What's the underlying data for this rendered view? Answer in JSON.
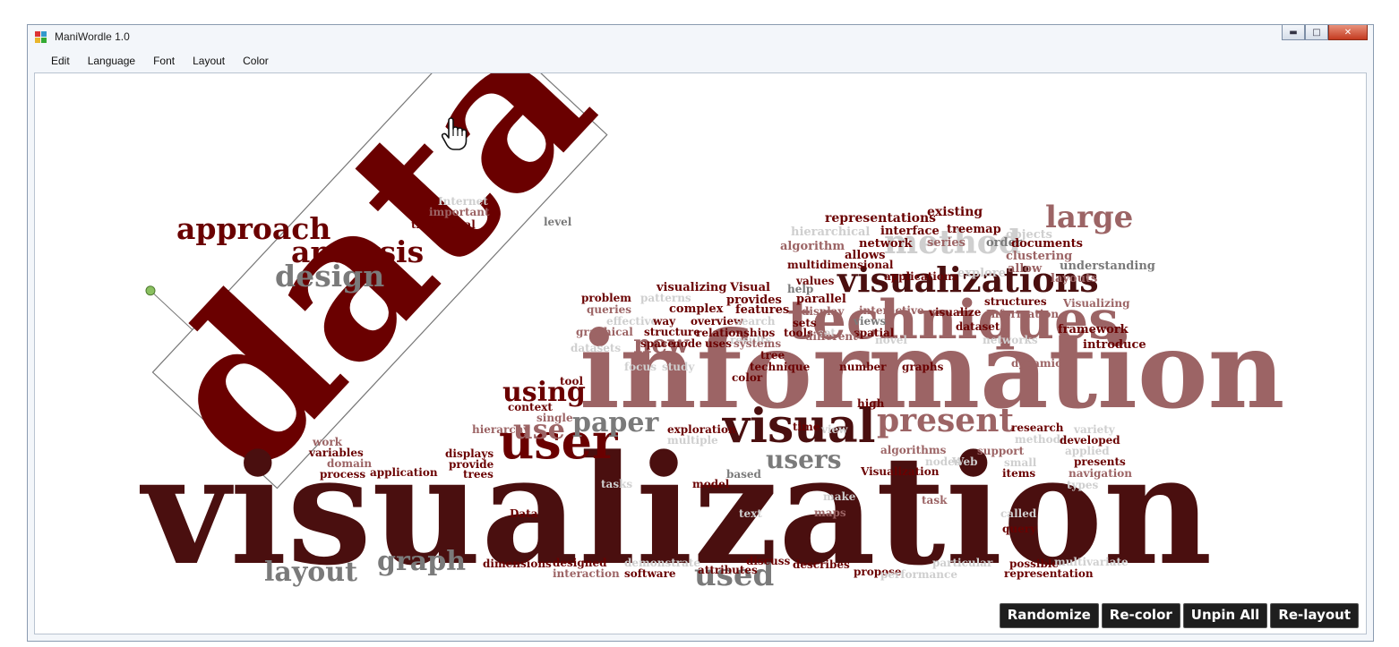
{
  "window": {
    "title": "ManiWordle 1.0"
  },
  "menu": [
    "Edit",
    "Language",
    "Font",
    "Layout",
    "Color"
  ],
  "buttons": {
    "randomize": "Randomize",
    "recolor": "Re-color",
    "unpin_all": "Unpin All",
    "relayout": "Re-layout"
  },
  "colors": {
    "dark": "#4a0f0f",
    "maroon": "#6a0000",
    "rose": "#9c6465",
    "gray": "#7a7a7a",
    "light": "#cfcfcf"
  },
  "cloud": {
    "pinned_word": "data",
    "words": [
      {
        "text": "visualization",
        "c": "dark"
      },
      {
        "text": "information",
        "c": "rose"
      },
      {
        "text": "techniques",
        "c": "rose"
      },
      {
        "text": "visual",
        "c": "dark"
      },
      {
        "text": "user",
        "c": "maroon"
      },
      {
        "text": "paper",
        "c": "gray"
      },
      {
        "text": "present",
        "c": "rose"
      },
      {
        "text": "large",
        "c": "rose"
      },
      {
        "text": "method",
        "c": "light"
      },
      {
        "text": "visualizations",
        "c": "dark"
      },
      {
        "text": "approach",
        "c": "maroon"
      },
      {
        "text": "analysis",
        "c": "maroon"
      },
      {
        "text": "design",
        "c": "gray"
      },
      {
        "text": "layout",
        "c": "gray"
      },
      {
        "text": "graph",
        "c": "gray"
      },
      {
        "text": "used",
        "c": "gray"
      },
      {
        "text": "users",
        "c": "gray"
      },
      {
        "text": "using",
        "c": "maroon"
      },
      {
        "text": "use",
        "c": "rose"
      },
      {
        "text": "new",
        "c": "rose"
      },
      {
        "text": "representations",
        "c": "maroon"
      },
      {
        "text": "existing",
        "c": "maroon"
      },
      {
        "text": "interface",
        "c": "maroon"
      },
      {
        "text": "treemap",
        "c": "maroon"
      },
      {
        "text": "hierarchical",
        "c": "light"
      },
      {
        "text": "objects",
        "c": "light"
      },
      {
        "text": "algorithm",
        "c": "rose"
      },
      {
        "text": "network",
        "c": "maroon"
      },
      {
        "text": "series",
        "c": "rose"
      },
      {
        "text": "order",
        "c": "gray"
      },
      {
        "text": "documents",
        "c": "maroon"
      },
      {
        "text": "allows",
        "c": "maroon"
      },
      {
        "text": "clustering",
        "c": "rose"
      },
      {
        "text": "multidimensional",
        "c": "maroon"
      },
      {
        "text": "allow",
        "c": "rose"
      },
      {
        "text": "understanding",
        "c": "gray"
      },
      {
        "text": "applications",
        "c": "maroon"
      },
      {
        "text": "explore",
        "c": "light"
      },
      {
        "text": "layouts",
        "c": "rose"
      },
      {
        "text": "values",
        "c": "maroon"
      },
      {
        "text": "help",
        "c": "gray"
      },
      {
        "text": "visualizing",
        "c": "maroon"
      },
      {
        "text": "Visual",
        "c": "maroon"
      },
      {
        "text": "parallel",
        "c": "maroon"
      },
      {
        "text": "structures",
        "c": "maroon"
      },
      {
        "text": "Visualizing",
        "c": "rose"
      },
      {
        "text": "problem",
        "c": "maroon"
      },
      {
        "text": "patterns",
        "c": "light"
      },
      {
        "text": "provides",
        "c": "maroon"
      },
      {
        "text": "display",
        "c": "rose"
      },
      {
        "text": "queries",
        "c": "rose"
      },
      {
        "text": "complex",
        "c": "maroon"
      },
      {
        "text": "features",
        "c": "maroon"
      },
      {
        "text": "interactive",
        "c": "rose"
      },
      {
        "text": "visualize",
        "c": "maroon"
      },
      {
        "text": "Information",
        "c": "rose"
      },
      {
        "text": "overview",
        "c": "maroon"
      },
      {
        "text": "sets",
        "c": "maroon"
      },
      {
        "text": "views",
        "c": "gray"
      },
      {
        "text": "effective",
        "c": "light"
      },
      {
        "text": "way",
        "c": "maroon"
      },
      {
        "text": "search",
        "c": "light"
      },
      {
        "text": "tools",
        "c": "maroon"
      },
      {
        "text": "set",
        "c": "light"
      },
      {
        "text": "spatial",
        "c": "maroon"
      },
      {
        "text": "dataset",
        "c": "maroon"
      },
      {
        "text": "relationships",
        "c": "maroon"
      },
      {
        "text": "different",
        "c": "rose"
      },
      {
        "text": "novel",
        "c": "light"
      },
      {
        "text": "networks",
        "c": "light"
      },
      {
        "text": "framework",
        "c": "maroon"
      },
      {
        "text": "graphical",
        "c": "rose"
      },
      {
        "text": "structure",
        "c": "maroon"
      },
      {
        "text": "results",
        "c": "light"
      },
      {
        "text": "space",
        "c": "maroon"
      },
      {
        "text": "node",
        "c": "maroon"
      },
      {
        "text": "uses",
        "c": "maroon"
      },
      {
        "text": "systems",
        "c": "rose"
      },
      {
        "text": "introduce",
        "c": "maroon"
      },
      {
        "text": "datasets",
        "c": "light"
      },
      {
        "text": "tree",
        "c": "maroon"
      },
      {
        "text": "technique",
        "c": "maroon"
      },
      {
        "text": "number",
        "c": "maroon"
      },
      {
        "text": "graphs",
        "c": "maroon"
      },
      {
        "text": "dynamic",
        "c": "rose"
      },
      {
        "text": "focus",
        "c": "light"
      },
      {
        "text": "study",
        "c": "light"
      },
      {
        "text": "color",
        "c": "maroon"
      },
      {
        "text": "tool",
        "c": "maroon"
      },
      {
        "text": "context",
        "c": "maroon"
      },
      {
        "text": "high",
        "c": "maroon"
      },
      {
        "text": "single",
        "c": "rose"
      },
      {
        "text": "hierarchy",
        "c": "rose"
      },
      {
        "text": "exploration",
        "c": "maroon"
      },
      {
        "text": "time",
        "c": "maroon"
      },
      {
        "text": "view",
        "c": "light"
      },
      {
        "text": "research",
        "c": "maroon"
      },
      {
        "text": "variety",
        "c": "light"
      },
      {
        "text": "multiple",
        "c": "light"
      },
      {
        "text": "methods",
        "c": "light"
      },
      {
        "text": "developed",
        "c": "maroon"
      },
      {
        "text": "algorithms",
        "c": "rose"
      },
      {
        "text": "support",
        "c": "rose"
      },
      {
        "text": "applied",
        "c": "light"
      },
      {
        "text": "work",
        "c": "rose"
      },
      {
        "text": "variables",
        "c": "maroon"
      },
      {
        "text": "domain",
        "c": "rose"
      },
      {
        "text": "process",
        "c": "maroon"
      },
      {
        "text": "application",
        "c": "maroon"
      },
      {
        "text": "displays",
        "c": "maroon"
      },
      {
        "text": "provide",
        "c": "maroon"
      },
      {
        "text": "trees",
        "c": "maroon"
      },
      {
        "text": "nodes",
        "c": "light"
      },
      {
        "text": "Web",
        "c": "light"
      },
      {
        "text": "small",
        "c": "light"
      },
      {
        "text": "presents",
        "c": "maroon"
      },
      {
        "text": "Visualization",
        "c": "maroon"
      },
      {
        "text": "based",
        "c": "gray"
      },
      {
        "text": "items",
        "c": "maroon"
      },
      {
        "text": "navigation",
        "c": "rose"
      },
      {
        "text": "tasks",
        "c": "light"
      },
      {
        "text": "model",
        "c": "maroon"
      },
      {
        "text": "types",
        "c": "light"
      },
      {
        "text": "task",
        "c": "rose"
      },
      {
        "text": "make",
        "c": "light"
      },
      {
        "text": "Data",
        "c": "maroon"
      },
      {
        "text": "text",
        "c": "light"
      },
      {
        "text": "maps",
        "c": "rose"
      },
      {
        "text": "called",
        "c": "light"
      },
      {
        "text": "query",
        "c": "maroon"
      },
      {
        "text": "designed",
        "c": "maroon"
      },
      {
        "text": "demonstrate",
        "c": "light"
      },
      {
        "text": "discuss",
        "c": "maroon"
      },
      {
        "text": "dimensions",
        "c": "maroon"
      },
      {
        "text": "attributes",
        "c": "maroon"
      },
      {
        "text": "describes",
        "c": "maroon"
      },
      {
        "text": "propose",
        "c": "maroon"
      },
      {
        "text": "particular",
        "c": "light"
      },
      {
        "text": "possible",
        "c": "maroon"
      },
      {
        "text": "multivariate",
        "c": "light"
      },
      {
        "text": "interaction",
        "c": "rose"
      },
      {
        "text": "software",
        "c": "maroon"
      },
      {
        "text": "performance",
        "c": "light"
      },
      {
        "text": "representation",
        "c": "maroon"
      },
      {
        "text": "traditional",
        "c": "maroon"
      },
      {
        "text": "important",
        "c": "rose"
      },
      {
        "text": "Internet",
        "c": "light"
      },
      {
        "text": "level",
        "c": "gray"
      }
    ]
  }
}
